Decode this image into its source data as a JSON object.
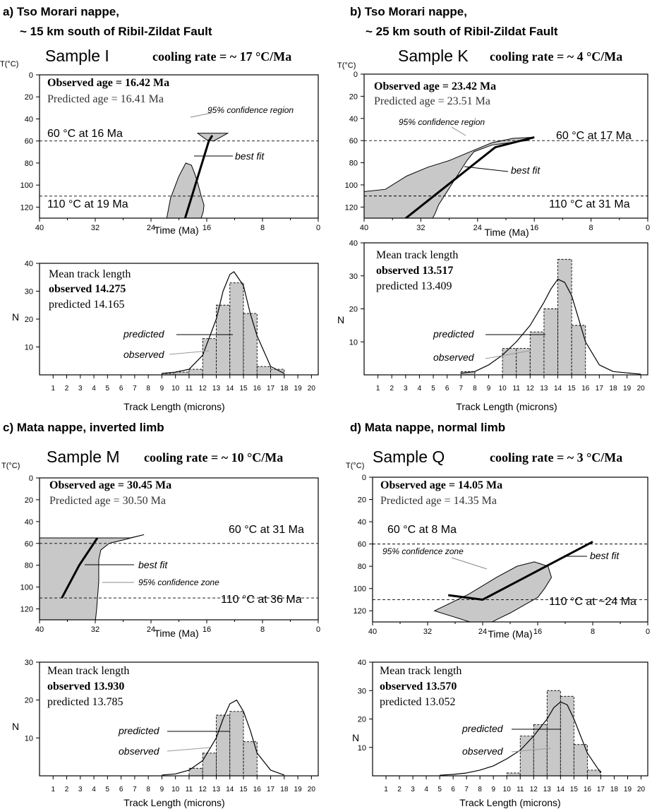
{
  "panels": [
    {
      "heading_line1": "a) Tso Morari nappe,",
      "heading_line2": "~ 15 km south of Ribil-Zildat Fault",
      "sample": "Sample I",
      "cooling_rate": "cooling rate = ~ 17 °C/Ma",
      "observed_age": "Observed age = 16.42 Ma",
      "predicted_age": "Predicted age = 16.41 Ma",
      "t_label": "T(°C)",
      "time_axis_label": "Time (Ma)",
      "time_ticks": [
        "40",
        "32",
        "24",
        "16",
        "8",
        "0"
      ],
      "temp_ticks": [
        "0",
        "20",
        "40",
        "60",
        "80",
        "100",
        "120"
      ],
      "upper_marker": "60 °C at 16 Ma",
      "lower_marker": "110 °C at 19 Ma",
      "confidence_label": "95% confidence region",
      "best_fit_label": "best fit",
      "mtl_label": "Mean track length",
      "mtl_observed": "observed 14.275",
      "mtl_predicted": "predicted 14.165",
      "hist_predicted_label": "predicted",
      "hist_observed_label": "observed",
      "n_label": "N",
      "hist_y_ticks": [
        "10",
        "20",
        "30",
        "40"
      ],
      "length_ticks": [
        "1",
        "2",
        "3",
        "4",
        "5",
        "6",
        "7",
        "8",
        "9",
        "10",
        "11",
        "12",
        "13",
        "14",
        "15",
        "16",
        "17",
        "18",
        "19",
        "20"
      ],
      "length_axis_label": "Track Length (microns)"
    },
    {
      "heading_line1": "b) Tso Morari nappe,",
      "heading_line2": "~ 25 km south of Ribil-Zildat Fault",
      "sample": "Sample K",
      "cooling_rate": "cooling rate = ~ 4 °C/Ma",
      "observed_age": "Observed age = 23.42 Ma",
      "predicted_age": "Predicted age = 23.51 Ma",
      "t_label": "T(°C)",
      "time_axis_label": "Time (Ma)",
      "time_ticks": [
        "40",
        "32",
        "24",
        "16",
        "8",
        "0"
      ],
      "temp_ticks": [
        "0",
        "20",
        "40",
        "60",
        "80",
        "100",
        "120"
      ],
      "upper_marker": "60 °C at 17 Ma",
      "lower_marker": "110 °C at 31 Ma",
      "confidence_label": "95% confidence region",
      "best_fit_label": "best fit",
      "mtl_label": "Mean track length",
      "mtl_observed": "observed 13.517",
      "mtl_predicted": "predicted 13.409",
      "hist_predicted_label": "predicted",
      "hist_observed_label": "observed",
      "n_label": "N",
      "hist_y_ticks": [
        "10",
        "20",
        "30",
        "40"
      ],
      "length_ticks": [
        "1",
        "2",
        "3",
        "4",
        "5",
        "6",
        "7",
        "8",
        "9",
        "10",
        "11",
        "12",
        "13",
        "14",
        "15",
        "16",
        "17",
        "18",
        "19",
        "20"
      ],
      "length_axis_label": "Track Length (microns)"
    },
    {
      "heading_line1": "c) Mata nappe, inverted limb",
      "heading_line2": "",
      "sample": "Sample M",
      "cooling_rate": "cooling rate = ~ 10 °C/Ma",
      "observed_age": "Observed age = 30.45 Ma",
      "predicted_age": "Predicted age = 30.50 Ma",
      "t_label": "T(°C)",
      "time_axis_label": "Time (Ma)",
      "time_ticks": [
        "40",
        "32",
        "24",
        "16",
        "8",
        "0"
      ],
      "temp_ticks": [
        "0",
        "20",
        "40",
        "60",
        "80",
        "100",
        "120"
      ],
      "upper_marker": "60 °C at 31 Ma",
      "lower_marker": "110 °C at 36 Ma",
      "confidence_label": "95% confidence zone",
      "best_fit_label": "best fit",
      "mtl_label": "Mean track length",
      "mtl_observed": "observed 13.930",
      "mtl_predicted": "predicted 13.785",
      "hist_predicted_label": "predicted",
      "hist_observed_label": "observed",
      "n_label": "N",
      "hist_y_ticks": [
        "10",
        "20",
        "30"
      ],
      "length_ticks": [
        "1",
        "2",
        "3",
        "4",
        "5",
        "6",
        "7",
        "8",
        "9",
        "10",
        "11",
        "12",
        "13",
        "14",
        "15",
        "16",
        "17",
        "18",
        "19",
        "20"
      ],
      "length_axis_label": "Track Length (microns)"
    },
    {
      "heading_line1": "d) Mata nappe, normal limb",
      "heading_line2": "",
      "sample": "Sample Q",
      "cooling_rate": "cooling rate = ~ 3 °C/Ma",
      "observed_age": "Observed age = 14.05 Ma",
      "predicted_age": "Predicted age = 14.35 Ma",
      "t_label": "T(°C)",
      "time_axis_label": "Time (Ma)",
      "time_ticks": [
        "40",
        "32",
        "24",
        "16",
        "8",
        "0"
      ],
      "temp_ticks": [
        "0",
        "20",
        "40",
        "60",
        "80",
        "100",
        "120"
      ],
      "upper_marker": "60 °C at 8 Ma",
      "lower_marker": "110 °C at ~24 Ma",
      "confidence_label": "95% confidence zone",
      "best_fit_label": "best fit",
      "mtl_label": "Mean track length",
      "mtl_observed": "observed 13.570",
      "mtl_predicted": "predicted 13.052",
      "hist_predicted_label": "predicted",
      "hist_observed_label": "observed",
      "n_label": "N",
      "hist_y_ticks": [
        "10",
        "20",
        "30",
        "40"
      ],
      "length_ticks": [
        "1",
        "2",
        "3",
        "4",
        "5",
        "6",
        "7",
        "8",
        "9",
        "10",
        "11",
        "12",
        "13",
        "14",
        "15",
        "16",
        "17",
        "18",
        "19",
        "20"
      ],
      "length_axis_label": "Track Length (microns)"
    }
  ],
  "chart_data": [
    {
      "type": "line",
      "sample": "Sample I",
      "xlabel": "Time (Ma)",
      "ylabel": "T(°C)",
      "xlim": [
        40,
        0
      ],
      "ylim": [
        0,
        130
      ],
      "best_fit": {
        "x": [
          19.2,
          15.7,
          15.2
        ],
        "y": [
          132,
          60,
          55
        ]
      },
      "confidence_region": [
        {
          "x": [
            21.8,
            21.2,
            20.0,
            19.0,
            18.2,
            17.7,
            17.3,
            17.0,
            16.8,
            16.6,
            16.4,
            16.5,
            16.8,
            16.7,
            16.2,
            15.5,
            14.5,
            13.5,
            15.5,
            17.0,
            19.0,
            19.5,
            21.8
          ],
          "y": [
            132,
            112,
            92,
            80,
            82,
            90,
            98,
            105,
            110,
            114,
            118,
            124,
            130,
            132,
            132,
            132,
            132,
            132,
            132,
            132,
            132,
            132,
            132
          ]
        },
        {
          "x": [
            17.3,
            16.0,
            15.0,
            13.0,
            14.5,
            17.3
          ],
          "y": [
            53,
            59,
            60,
            53,
            53,
            53
          ]
        }
      ],
      "reference_lines": [
        60,
        110
      ],
      "histogram": {
        "bins": [
          9,
          10,
          11,
          12,
          13,
          14,
          15,
          16,
          17
        ],
        "observed": [
          0.5,
          1,
          2,
          13,
          25,
          33,
          22,
          3,
          2
        ],
        "ylim": [
          0,
          40
        ]
      },
      "predicted_curve": {
        "x": [
          9,
          10,
          11,
          12,
          13,
          13.5,
          14,
          14.3,
          15,
          15.5,
          16,
          17,
          18
        ],
        "y": [
          0.5,
          1,
          2,
          7,
          20,
          30,
          36,
          37,
          32,
          22,
          14,
          3,
          0.5
        ]
      }
    },
    {
      "type": "line",
      "sample": "Sample K",
      "xlabel": "Time (Ma)",
      "ylabel": "T(°C)",
      "xlim": [
        40,
        0
      ],
      "ylim": [
        0,
        130
      ],
      "best_fit": {
        "x": [
          34.5,
          21.5,
          16
        ],
        "y": [
          132,
          66,
          57
        ]
      },
      "confidence_region": [
        {
          "x": [
            40,
            37,
            34,
            31,
            28,
            25,
            22,
            19,
            16.2,
            17,
            22,
            24.5,
            25.5,
            26.5,
            27.5,
            28.5,
            29.5,
            30,
            30.5,
            40
          ],
          "y": [
            106,
            104,
            92,
            84,
            78,
            70,
            62,
            58,
            57,
            60,
            64,
            70,
            78,
            88,
            98,
            108,
            118,
            126,
            132,
            132
          ]
        }
      ],
      "reference_lines": [
        60,
        110
      ],
      "histogram": {
        "bins": [
          6,
          7,
          8,
          9,
          10,
          11,
          12,
          13,
          14,
          15,
          16
        ],
        "observed": [
          0,
          1,
          0,
          0,
          8,
          8,
          13,
          20,
          35,
          15,
          0
        ],
        "ylim": [
          0,
          40
        ]
      },
      "predicted_curve": {
        "x": [
          7,
          8,
          9,
          10,
          11,
          12,
          13,
          13.5,
          14,
          14.5,
          15,
          16,
          17,
          18,
          20
        ],
        "y": [
          0.5,
          1,
          3,
          6,
          10,
          15,
          22,
          26,
          29,
          28,
          24,
          10,
          3,
          1,
          0.2
        ]
      }
    },
    {
      "type": "line",
      "sample": "Sample M",
      "xlabel": "Time (Ma)",
      "ylabel": "T(°C)",
      "xlim": [
        40,
        0
      ],
      "ylim": [
        0,
        130
      ],
      "best_fit": {
        "x": [
          36.8,
          34.3,
          31.7
        ],
        "y": [
          110,
          80,
          55
        ]
      },
      "confidence_region": [
        {
          "x": [
            40,
            32.2,
            27,
            25,
            27.5,
            30,
            31.2,
            31.5,
            31.5,
            31.8,
            32,
            40
          ],
          "y": [
            55,
            55,
            55,
            52,
            56,
            60,
            66,
            75,
            95,
            120,
            132,
            132
          ]
        }
      ],
      "reference_lines": [
        60,
        110
      ],
      "histogram": {
        "bins": [
          11,
          12,
          13,
          14,
          15
        ],
        "observed": [
          2,
          6,
          16,
          17,
          9
        ],
        "ylim": [
          0,
          30
        ]
      },
      "predicted_curve": {
        "x": [
          9,
          10,
          11,
          12,
          13,
          13.5,
          14,
          14.5,
          15,
          15.5,
          16,
          17,
          18
        ],
        "y": [
          0.2,
          0.5,
          1.5,
          4,
          10,
          15,
          19,
          20,
          17,
          12,
          6,
          1.5,
          0.2
        ]
      }
    },
    {
      "type": "line",
      "sample": "Sample Q",
      "xlabel": "Time (Ma)",
      "ylabel": "T(°C)",
      "xlim": [
        40,
        0
      ],
      "ylim": [
        0,
        130
      ],
      "best_fit": {
        "x": [
          29,
          24,
          8
        ],
        "y": [
          106,
          110,
          58
        ]
      },
      "confidence_region": [
        {
          "x": [
            31,
            26,
            22,
            19,
            16.5,
            14.5,
            14,
            15,
            16,
            18,
            20,
            22,
            23.8,
            31
          ],
          "y": [
            120,
            105,
            90,
            80,
            76,
            80,
            90,
            100,
            108,
            115,
            122,
            128,
            134,
            120
          ]
        }
      ],
      "reference_lines": [
        60,
        110
      ],
      "histogram": {
        "bins": [
          9,
          10,
          11,
          12,
          13,
          14,
          15,
          16
        ],
        "observed": [
          0,
          1,
          14,
          18,
          30,
          28,
          11,
          2
        ],
        "ylim": [
          0,
          40
        ]
      },
      "predicted_curve": {
        "x": [
          5,
          6,
          7,
          8,
          9,
          10,
          11,
          12,
          13,
          13.5,
          14,
          14.5,
          15,
          16,
          17
        ],
        "y": [
          0.2,
          0.5,
          1,
          2,
          3.5,
          6,
          9,
          14,
          20,
          24,
          26,
          25,
          20,
          8,
          1
        ]
      }
    }
  ]
}
